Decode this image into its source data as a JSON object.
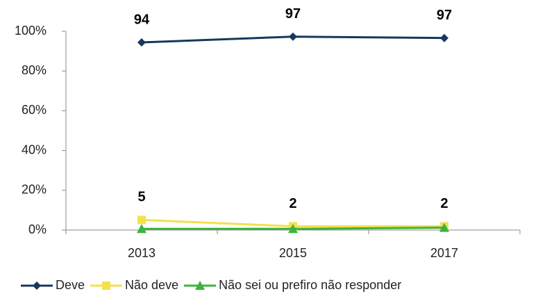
{
  "chart_data": {
    "type": "line",
    "categories": [
      "2013",
      "2015",
      "2017"
    ],
    "series": [
      {
        "name": "Deve",
        "color": "#17375e",
        "marker": "diamond",
        "values": [
          94.4,
          97.3,
          96.6
        ],
        "value_labels": [
          "94",
          "97",
          "97"
        ]
      },
      {
        "name": "Não deve",
        "color": "#f2e14c",
        "marker": "square",
        "values": [
          5.1,
          1.9,
          1.9
        ],
        "value_labels": [
          "5",
          "2",
          "2"
        ]
      },
      {
        "name": "Não sei ou prefiro não responder",
        "color": "#3db33d",
        "marker": "triangle",
        "values": [
          0.6,
          0.6,
          1.2
        ]
      }
    ],
    "ylim": [
      0,
      100
    ],
    "yticks": [
      {
        "value": 0,
        "label": "0%"
      },
      {
        "value": 20,
        "label": "20%"
      },
      {
        "value": 40,
        "label": "40%"
      },
      {
        "value": 60,
        "label": "60%"
      },
      {
        "value": 80,
        "label": "80%"
      },
      {
        "value": 100,
        "label": "100%"
      }
    ],
    "legend": "bottom"
  }
}
